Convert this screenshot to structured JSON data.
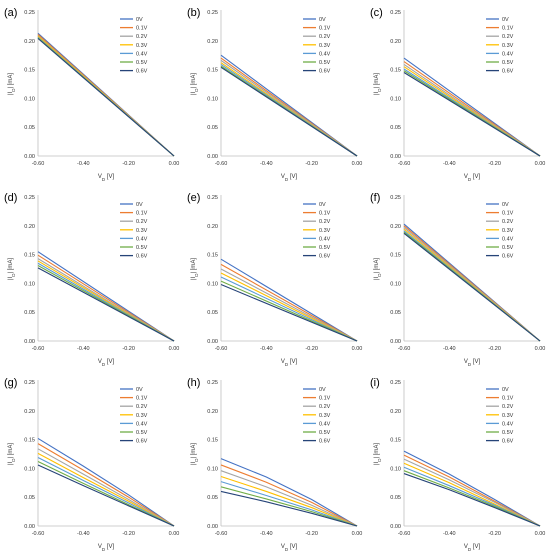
{
  "series_labels": [
    "0V",
    "0.1V",
    "0.2V",
    "0.3V",
    "0.4V",
    "0.5V",
    "0.6V"
  ],
  "series_colors": [
    "#4472C4",
    "#ED7D31",
    "#A5A5A5",
    "#FFC000",
    "#5B9BD5",
    "#70AD47",
    "#264478"
  ],
  "chart_data": [
    {
      "panel": "(a)",
      "type": "line",
      "xlabel_main": "V",
      "xlabel_sub": "D",
      "xlabel_unit": " [V]",
      "ylabel_main": "|I",
      "ylabel_sub": "D",
      "ylabel_unit": "| [mA]",
      "x_ticks": [
        "-0.60",
        "-0.40",
        "-0.20",
        "0.00"
      ],
      "y_ticks": [
        "0.00",
        "0.05",
        "0.10",
        "0.15",
        "0.20",
        "0.25"
      ],
      "xlim": [
        -0.6,
        0
      ],
      "ylim": [
        0,
        0.25
      ],
      "x": [
        -0.6,
        0
      ],
      "series": [
        {
          "name": "0V",
          "values": [
            0.213,
            0
          ]
        },
        {
          "name": "0.1V",
          "values": [
            0.211,
            0
          ]
        },
        {
          "name": "0.2V",
          "values": [
            0.209,
            0
          ]
        },
        {
          "name": "0.3V",
          "values": [
            0.208,
            0
          ]
        },
        {
          "name": "0.4V",
          "values": [
            0.206,
            0
          ]
        },
        {
          "name": "0.5V",
          "values": [
            0.205,
            0
          ]
        },
        {
          "name": "0.6V",
          "values": [
            0.204,
            0
          ]
        }
      ]
    },
    {
      "panel": "(b)",
      "type": "line",
      "xlabel_main": "V",
      "xlabel_sub": "D",
      "xlabel_unit": " [V]",
      "ylabel_main": "|I",
      "ylabel_sub": "D",
      "ylabel_unit": "| [mA]",
      "x_ticks": [
        "-0.60",
        "-0.40",
        "-0.20",
        "0.00"
      ],
      "y_ticks": [
        "0.00",
        "0.05",
        "0.10",
        "0.15",
        "0.20",
        "0.25"
      ],
      "xlim": [
        -0.6,
        0
      ],
      "ylim": [
        0,
        0.25
      ],
      "x": [
        -0.6,
        0
      ],
      "series": [
        {
          "name": "0V",
          "values": [
            0.175,
            0
          ]
        },
        {
          "name": "0.1V",
          "values": [
            0.17,
            0
          ]
        },
        {
          "name": "0.2V",
          "values": [
            0.166,
            0
          ]
        },
        {
          "name": "0.3V",
          "values": [
            0.162,
            0
          ]
        },
        {
          "name": "0.4V",
          "values": [
            0.159,
            0
          ]
        },
        {
          "name": "0.5V",
          "values": [
            0.156,
            0
          ]
        },
        {
          "name": "0.6V",
          "values": [
            0.154,
            0
          ]
        }
      ]
    },
    {
      "panel": "(c)",
      "type": "line",
      "xlabel_main": "V",
      "xlabel_sub": "D",
      "xlabel_unit": " [V]",
      "ylabel_main": "|I",
      "ylabel_sub": "D",
      "ylabel_unit": "| [mA]",
      "x_ticks": [
        "-0.60",
        "-0.40",
        "-0.20",
        "0.00"
      ],
      "y_ticks": [
        "0.00",
        "0.05",
        "0.10",
        "0.15",
        "0.20",
        "0.25"
      ],
      "xlim": [
        -0.6,
        0
      ],
      "ylim": [
        0,
        0.25
      ],
      "x": [
        -0.6,
        0
      ],
      "series": [
        {
          "name": "0V",
          "values": [
            0.17,
            0
          ]
        },
        {
          "name": "0.1V",
          "values": [
            0.164,
            0
          ]
        },
        {
          "name": "0.2V",
          "values": [
            0.159,
            0
          ]
        },
        {
          "name": "0.3V",
          "values": [
            0.155,
            0
          ]
        },
        {
          "name": "0.4V",
          "values": [
            0.151,
            0
          ]
        },
        {
          "name": "0.5V",
          "values": [
            0.148,
            0
          ]
        },
        {
          "name": "0.6V",
          "values": [
            0.145,
            0
          ]
        }
      ]
    },
    {
      "panel": "(d)",
      "type": "line",
      "xlabel_main": "V",
      "xlabel_sub": "D",
      "xlabel_unit": " [V]",
      "ylabel_main": "|I",
      "ylabel_sub": "D",
      "ylabel_unit": "| [mA]",
      "x_ticks": [
        "-0.60",
        "-0.40",
        "-0.20",
        "0.00"
      ],
      "y_ticks": [
        "0.00",
        "0.05",
        "0.10",
        "0.15",
        "0.20",
        "0.25"
      ],
      "xlim": [
        -0.6,
        0
      ],
      "ylim": [
        0,
        0.25
      ],
      "x": [
        -0.6,
        0
      ],
      "series": [
        {
          "name": "0V",
          "values": [
            0.155,
            0
          ]
        },
        {
          "name": "0.1V",
          "values": [
            0.149,
            0
          ]
        },
        {
          "name": "0.2V",
          "values": [
            0.143,
            0
          ]
        },
        {
          "name": "0.3V",
          "values": [
            0.139,
            0
          ]
        },
        {
          "name": "0.4V",
          "values": [
            0.135,
            0
          ]
        },
        {
          "name": "0.5V",
          "values": [
            0.131,
            0
          ]
        },
        {
          "name": "0.6V",
          "values": [
            0.127,
            0
          ]
        }
      ]
    },
    {
      "panel": "(e)",
      "type": "line",
      "xlabel_main": "V",
      "xlabel_sub": "D",
      "xlabel_unit": " [V]",
      "ylabel_main": "|I",
      "ylabel_sub": "D",
      "ylabel_unit": "| [mA]",
      "x_ticks": [
        "-0.60",
        "-0.40",
        "-0.20",
        "0.00"
      ],
      "y_ticks": [
        "0.00",
        "0.05",
        "0.10",
        "0.15",
        "0.20",
        "0.25"
      ],
      "xlim": [
        -0.6,
        0
      ],
      "ylim": [
        0,
        0.25
      ],
      "x": [
        -0.6,
        0
      ],
      "series": [
        {
          "name": "0V",
          "values": [
            0.142,
            0
          ]
        },
        {
          "name": "0.1V",
          "values": [
            0.133,
            0
          ]
        },
        {
          "name": "0.2V",
          "values": [
            0.125,
            0
          ]
        },
        {
          "name": "0.3V",
          "values": [
            0.118,
            0
          ]
        },
        {
          "name": "0.4V",
          "values": [
            0.111,
            0
          ]
        },
        {
          "name": "0.5V",
          "values": [
            0.104,
            0
          ]
        },
        {
          "name": "0.6V",
          "values": [
            0.098,
            0
          ]
        }
      ]
    },
    {
      "panel": "(f)",
      "type": "line",
      "xlabel_main": "V",
      "xlabel_sub": "D",
      "xlabel_unit": " [V]",
      "ylabel_main": "|I",
      "ylabel_sub": "D",
      "ylabel_unit": "| [mA]",
      "x_ticks": [
        "-0.60",
        "-0.40",
        "-0.20",
        "0.00"
      ],
      "y_ticks": [
        "0.00",
        "0.05",
        "0.10",
        "0.15",
        "0.20",
        "0.25"
      ],
      "xlim": [
        -0.6,
        0
      ],
      "ylim": [
        0,
        0.25
      ],
      "x": [
        -0.6,
        0
      ],
      "series": [
        {
          "name": "0V",
          "values": [
            0.203,
            0
          ]
        },
        {
          "name": "0.1V",
          "values": [
            0.2,
            0
          ]
        },
        {
          "name": "0.2V",
          "values": [
            0.197,
            0
          ]
        },
        {
          "name": "0.3V",
          "values": [
            0.194,
            0
          ]
        },
        {
          "name": "0.4V",
          "values": [
            0.191,
            0
          ]
        },
        {
          "name": "0.5V",
          "values": [
            0.189,
            0
          ]
        },
        {
          "name": "0.6V",
          "values": [
            0.187,
            0
          ]
        }
      ]
    },
    {
      "panel": "(g)",
      "type": "line",
      "xlabel_main": "V",
      "xlabel_sub": "D",
      "xlabel_unit": " [V]",
      "ylabel_main": "|I",
      "ylabel_sub": "D",
      "ylabel_unit": "| [mA]",
      "x_ticks": [
        "-0.60",
        "-0.40",
        "-0.20",
        "0.00"
      ],
      "y_ticks": [
        "0.00",
        "0.05",
        "0.10",
        "0.15",
        "0.20",
        "0.25"
      ],
      "xlim": [
        -0.6,
        0
      ],
      "ylim": [
        0,
        0.25
      ],
      "x": [
        -0.6,
        -0.4,
        -0.2,
        0
      ],
      "series": [
        {
          "name": "0V",
          "values": [
            0.152,
            0.104,
            0.054,
            0
          ]
        },
        {
          "name": "0.1V",
          "values": [
            0.143,
            0.097,
            0.05,
            0
          ]
        },
        {
          "name": "0.2V",
          "values": [
            0.134,
            0.09,
            0.046,
            0
          ]
        },
        {
          "name": "0.3V",
          "values": [
            0.126,
            0.084,
            0.043,
            0
          ]
        },
        {
          "name": "0.4V",
          "values": [
            0.119,
            0.079,
            0.04,
            0
          ]
        },
        {
          "name": "0.5V",
          "values": [
            0.112,
            0.074,
            0.037,
            0
          ]
        },
        {
          "name": "0.6V",
          "values": [
            0.106,
            0.07,
            0.035,
            0
          ]
        }
      ]
    },
    {
      "panel": "(h)",
      "type": "line",
      "xlabel_main": "V",
      "xlabel_sub": "D",
      "xlabel_unit": " [V]",
      "ylabel_main": "|I",
      "ylabel_sub": "D",
      "ylabel_unit": "| [mA]",
      "x_ticks": [
        "-0.60",
        "-0.40",
        "-0.20",
        "0.00"
      ],
      "y_ticks": [
        "0.00",
        "0.05",
        "0.10",
        "0.15",
        "0.20",
        "0.25"
      ],
      "xlim": [
        -0.6,
        0
      ],
      "ylim": [
        0,
        0.25
      ],
      "x": [
        -0.6,
        -0.4,
        -0.2,
        0
      ],
      "series": [
        {
          "name": "0V",
          "values": [
            0.117,
            0.085,
            0.046,
            0
          ]
        },
        {
          "name": "0.1V",
          "values": [
            0.106,
            0.076,
            0.041,
            0
          ]
        },
        {
          "name": "0.2V",
          "values": [
            0.096,
            0.068,
            0.036,
            0
          ]
        },
        {
          "name": "0.3V",
          "values": [
            0.086,
            0.06,
            0.032,
            0
          ]
        },
        {
          "name": "0.4V",
          "values": [
            0.077,
            0.053,
            0.028,
            0
          ]
        },
        {
          "name": "0.5V",
          "values": [
            0.068,
            0.047,
            0.025,
            0
          ]
        },
        {
          "name": "0.6V",
          "values": [
            0.06,
            0.042,
            0.022,
            0
          ]
        }
      ]
    },
    {
      "panel": "(i)",
      "type": "line",
      "xlabel_main": "V",
      "xlabel_sub": "D",
      "xlabel_unit": " [V]",
      "ylabel_main": "|I",
      "ylabel_sub": "D",
      "ylabel_unit": "| [mA]",
      "x_ticks": [
        "-0.60",
        "-0.40",
        "-0.20",
        "0.00"
      ],
      "y_ticks": [
        "0.00",
        "0.05",
        "0.10",
        "0.15",
        "0.20",
        "0.25"
      ],
      "xlim": [
        -0.6,
        0
      ],
      "ylim": [
        0,
        0.25
      ],
      "x": [
        -0.6,
        -0.4,
        -0.2,
        0
      ],
      "series": [
        {
          "name": "0V",
          "values": [
            0.13,
            0.09,
            0.046,
            0
          ]
        },
        {
          "name": "0.1V",
          "values": [
            0.123,
            0.085,
            0.043,
            0
          ]
        },
        {
          "name": "0.2V",
          "values": [
            0.116,
            0.08,
            0.041,
            0
          ]
        },
        {
          "name": "0.3V",
          "values": [
            0.109,
            0.075,
            0.038,
            0
          ]
        },
        {
          "name": "0.4V",
          "values": [
            0.102,
            0.07,
            0.036,
            0
          ]
        },
        {
          "name": "0.5V",
          "values": [
            0.096,
            0.066,
            0.034,
            0
          ]
        },
        {
          "name": "0.6V",
          "values": [
            0.091,
            0.063,
            0.032,
            0
          ]
        }
      ]
    }
  ]
}
